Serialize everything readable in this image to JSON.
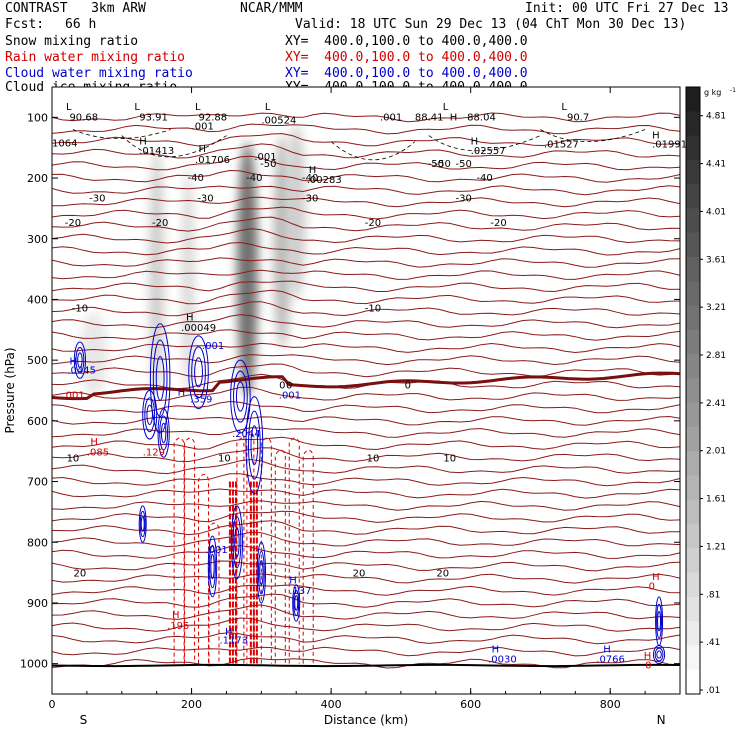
{
  "header": {
    "model_line": "CONTRAST   3km ARW",
    "org": "NCAR/MMM",
    "init": "Init: 00 UTC Fri 27 Dec 13",
    "fcst_label": "Fcst:",
    "fcst_value": "66 h",
    "valid": "Valid: 18 UTC Sun 29 Dec 13 (04 ChT Mon 30 Dec 13)",
    "fields": [
      {
        "name": "Snow mixing ratio",
        "xy": "XY=  400.0,100.0 to 400.0,400.0",
        "color": "#000000"
      },
      {
        "name": "Rain water mixing ratio",
        "xy": "XY=  400.0,100.0 to 400.0,400.0",
        "color": "#d00000"
      },
      {
        "name": "Cloud water mixing ratio",
        "xy": "XY=  400.0,100.0 to 400.0,400.0",
        "color": "#0000cc"
      },
      {
        "name": "Cloud ice mixing ratio",
        "xy": "XY=  400.0,100.0 to 400.0,400.0",
        "color": "#000000"
      }
    ]
  },
  "chart_data": {
    "type": "contour-cross-section",
    "xlabel": "Distance (km)",
    "ylabel": "Pressure (hPa)",
    "xlim": [
      0,
      900
    ],
    "ylim": [
      1050,
      50
    ],
    "x_ticks": [
      0,
      200,
      400,
      600,
      800
    ],
    "y_ticks": [
      100,
      200,
      300,
      400,
      500,
      600,
      700,
      800,
      900,
      1000
    ],
    "end_labels": {
      "left": "S",
      "right": "N"
    },
    "colorbar": {
      "unit": "g kg",
      "unit_exp": "-1",
      "ticks": [
        "4.81",
        "4.41",
        "4.01",
        "3.61",
        "3.21",
        "2.81",
        "2.41",
        "2.01",
        "1.61",
        "1.21",
        ".81",
        ".41",
        ".01"
      ],
      "tick_values": [
        4.81,
        4.41,
        4.01,
        3.61,
        3.21,
        2.81,
        2.41,
        2.01,
        1.61,
        1.21,
        0.81,
        0.41,
        0.01
      ],
      "range": [
        0.01,
        5.0
      ]
    },
    "temperature_contours": [
      {
        "label": "-50",
        "p": 175,
        "x": [
          310,
          550
        ]
      },
      {
        "label": "-50",
        "p": 175,
        "x": [
          560,
          590
        ]
      },
      {
        "label": "-40",
        "p": 198,
        "x": [
          206,
          290,
          370,
          620
        ]
      },
      {
        "label": "-30",
        "p": 232,
        "x": [
          65,
          220,
          370,
          590
        ]
      },
      {
        "label": "-20",
        "p": 272,
        "x": [
          30,
          155,
          460,
          640
        ]
      },
      {
        "label": "-10",
        "p": 413,
        "x": [
          40,
          460
        ]
      },
      {
        "label": "0",
        "p": 540,
        "x": [
          330,
          340,
          510
        ]
      },
      {
        "label": "10",
        "p": 660,
        "x": [
          30,
          247,
          460,
          570
        ]
      },
      {
        "label": "20",
        "p": 850,
        "x": [
          40,
          440,
          560
        ]
      }
    ],
    "annotations": [
      {
        "label": "L",
        "x": 20,
        "p": 88,
        "color": "#000000"
      },
      {
        "label": "90.68",
        "x": 25,
        "p": 105,
        "color": "#000000"
      },
      {
        "label": "L",
        "x": 118,
        "p": 88,
        "color": "#000000"
      },
      {
        "label": "93.91",
        "x": 125,
        "p": 105,
        "color": "#000000"
      },
      {
        "label": "L",
        "x": 205,
        "p": 88,
        "color": "#000000"
      },
      {
        "label": "92.88",
        "x": 210,
        "p": 105,
        "color": "#000000"
      },
      {
        "label": "L",
        "x": 305,
        "p": 88,
        "color": "#000000"
      },
      {
        "label": "H",
        "x": 570,
        "p": 105,
        "color": "#000000"
      },
      {
        "label": "88.41",
        "x": 520,
        "p": 105,
        "color": "#000000"
      },
      {
        "label": "L",
        "x": 560,
        "p": 88,
        "color": "#000000"
      },
      {
        "label": "88.04",
        "x": 595,
        "p": 105,
        "color": "#000000"
      },
      {
        "label": "L",
        "x": 730,
        "p": 88,
        "color": "#000000"
      },
      {
        "label": "90.7",
        "x": 738,
        "p": 105,
        "color": "#000000"
      },
      {
        "label": ".00524",
        "x": 300,
        "p": 110,
        "color": "#000000"
      },
      {
        "label": ".001",
        "x": 200,
        "p": 120,
        "color": "#000000"
      },
      {
        "label": ".001",
        "x": 470,
        "p": 105,
        "color": "#000000"
      },
      {
        "label": "1064",
        "x": 0,
        "p": 148,
        "color": "#000000"
      },
      {
        "label": "H",
        "x": 125,
        "p": 145,
        "color": "#000000"
      },
      {
        "label": ".01413",
        "x": 125,
        "p": 160,
        "color": "#000000"
      },
      {
        "label": "H",
        "x": 210,
        "p": 157,
        "color": "#000000"
      },
      {
        "label": ".01706",
        "x": 205,
        "p": 175,
        "color": "#000000"
      },
      {
        "label": ".001",
        "x": 290,
        "p": 170,
        "color": "#000000"
      },
      {
        "label": "H",
        "x": 600,
        "p": 145,
        "color": "#000000"
      },
      {
        "label": ".02557",
        "x": 600,
        "p": 160,
        "color": "#000000"
      },
      {
        "label": ".01527",
        "x": 705,
        "p": 150,
        "color": "#000000"
      },
      {
        "label": "H",
        "x": 860,
        "p": 135,
        "color": "#000000"
      },
      {
        "label": ".01991",
        "x": 860,
        "p": 150,
        "color": "#000000"
      },
      {
        "label": "H",
        "x": 368,
        "p": 192,
        "color": "#000000"
      },
      {
        "label": ".00283",
        "x": 365,
        "p": 208,
        "color": "#000000"
      },
      {
        "label": "H",
        "x": 192,
        "p": 435,
        "color": "#000000"
      },
      {
        "label": ".00049",
        "x": 185,
        "p": 452,
        "color": "#000000"
      },
      {
        "label": ".001",
        "x": 215,
        "p": 482,
        "color": "#0000cc"
      },
      {
        "label": "H",
        "x": 25,
        "p": 507,
        "color": "#0000cc"
      },
      {
        "label": ".0445",
        "x": 22,
        "p": 522,
        "color": "#0000cc"
      },
      {
        "label": ".001",
        "x": 15,
        "p": 563,
        "color": "#d00000"
      },
      {
        "label": "H",
        "x": 180,
        "p": 558,
        "color": "#0000cc"
      },
      {
        "label": ".359",
        "x": 198,
        "p": 570,
        "color": "#0000cc"
      },
      {
        "label": ".001",
        "x": 325,
        "p": 563,
        "color": "#0000cc"
      },
      {
        "label": ".2044",
        "x": 258,
        "p": 627,
        "color": "#0000cc"
      },
      {
        "label": "H",
        "x": 55,
        "p": 640,
        "color": "#d00000"
      },
      {
        "label": ".085",
        "x": 50,
        "p": 657,
        "color": "#d00000"
      },
      {
        "label": ".129",
        "x": 130,
        "p": 657,
        "color": "#d00000"
      },
      {
        "label": ".001",
        "x": 220,
        "p": 818,
        "color": "#0000cc"
      },
      {
        "label": "H",
        "x": 340,
        "p": 868,
        "color": "#0000cc"
      },
      {
        "label": ".137",
        "x": 340,
        "p": 885,
        "color": "#0000cc"
      },
      {
        "label": "H",
        "x": 172,
        "p": 925,
        "color": "#d00000"
      },
      {
        "label": ".195",
        "x": 165,
        "p": 943,
        "color": "#d00000"
      },
      {
        "label": "H",
        "x": 248,
        "p": 953,
        "color": "#0000cc"
      },
      {
        "label": ".1173",
        "x": 240,
        "p": 967,
        "color": "#0000cc"
      },
      {
        "label": "H",
        "x": 630,
        "p": 982,
        "color": "#0000cc"
      },
      {
        "label": ".0030",
        "x": 625,
        "p": 998,
        "color": "#0000cc"
      },
      {
        "label": "H",
        "x": 790,
        "p": 982,
        "color": "#0000cc"
      },
      {
        "label": ".0766",
        "x": 780,
        "p": 998,
        "color": "#0000cc"
      },
      {
        "label": "H",
        "x": 860,
        "p": 862,
        "color": "#d00000"
      },
      {
        "label": "0",
        "x": 855,
        "p": 878,
        "color": "#d00000"
      },
      {
        "label": "H",
        "x": 848,
        "p": 992,
        "color": "#d00000"
      },
      {
        "label": "0",
        "x": 850,
        "p": 1008,
        "color": "#d00000"
      }
    ],
    "snow_plumes": [
      {
        "x": 150,
        "w": 22,
        "p_top": 150,
        "p_bottom": 560,
        "max": 1.0
      },
      {
        "x": 195,
        "w": 18,
        "p_top": 180,
        "p_bottom": 560,
        "max": 0.7
      },
      {
        "x": 280,
        "w": 30,
        "p_top": 140,
        "p_bottom": 560,
        "max": 3.8
      },
      {
        "x": 330,
        "w": 26,
        "p_top": 130,
        "p_bottom": 480,
        "max": 1.6
      },
      {
        "x": 350,
        "w": 28,
        "p_top": 110,
        "p_bottom": 400,
        "max": 1.0
      },
      {
        "x": 60,
        "w": 40,
        "p_top": 420,
        "p_bottom": 560,
        "max": 0.3
      }
    ],
    "rain_bands": [
      {
        "x": 175,
        "p_top": 620,
        "p_bottom": 1000
      },
      {
        "x": 190,
        "p_top": 620,
        "p_bottom": 1000
      },
      {
        "x": 210,
        "p_top": 680,
        "p_bottom": 1000
      },
      {
        "x": 225,
        "p_top": 760,
        "p_bottom": 1000
      },
      {
        "x": 265,
        "p_top": 620,
        "p_bottom": 1000
      },
      {
        "x": 275,
        "p_top": 610,
        "p_bottom": 1000
      },
      {
        "x": 300,
        "p_top": 620,
        "p_bottom": 1000
      },
      {
        "x": 320,
        "p_top": 640,
        "p_bottom": 1000
      },
      {
        "x": 340,
        "p_top": 620,
        "p_bottom": 1000
      },
      {
        "x": 360,
        "p_top": 640,
        "p_bottom": 1000
      }
    ],
    "heavy_rain": [
      {
        "x": 255,
        "p_top": 700,
        "p_bottom": 1000
      },
      {
        "x": 285,
        "p_top": 700,
        "p_bottom": 1000
      }
    ],
    "cloud_water": [
      {
        "x": 40,
        "p": 500,
        "rx": 8,
        "rp": 30
      },
      {
        "x": 155,
        "p": 530,
        "rx": 14,
        "rp": 90
      },
      {
        "x": 140,
        "p": 590,
        "rx": 10,
        "rp": 40
      },
      {
        "x": 160,
        "p": 620,
        "rx": 8,
        "rp": 40
      },
      {
        "x": 210,
        "p": 520,
        "rx": 14,
        "rp": 60
      },
      {
        "x": 270,
        "p": 560,
        "rx": 14,
        "rp": 60
      },
      {
        "x": 290,
        "p": 640,
        "rx": 12,
        "rp": 80
      },
      {
        "x": 230,
        "p": 840,
        "rx": 6,
        "rp": 50
      },
      {
        "x": 265,
        "p": 800,
        "rx": 8,
        "rp": 60
      },
      {
        "x": 300,
        "p": 850,
        "rx": 6,
        "rp": 50
      },
      {
        "x": 350,
        "p": 900,
        "rx": 5,
        "rp": 30
      },
      {
        "x": 130,
        "p": 770,
        "rx": 5,
        "rp": 30
      },
      {
        "x": 870,
        "p": 930,
        "rx": 5,
        "rp": 40
      },
      {
        "x": 870,
        "p": 985,
        "rx": 8,
        "rp": 15
      }
    ]
  }
}
